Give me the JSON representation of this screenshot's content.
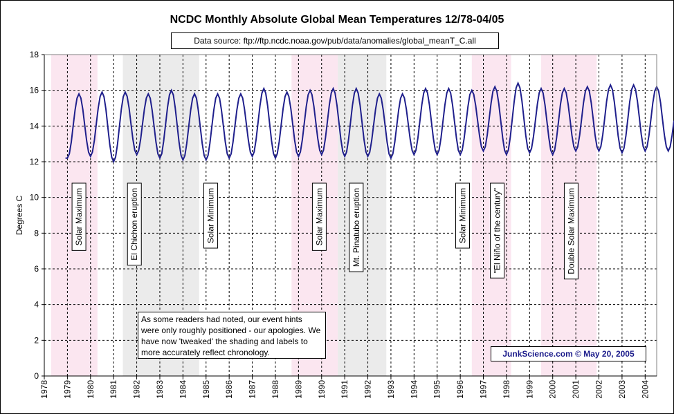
{
  "chart_data": {
    "type": "line",
    "title": "NCDC Monthly Absolute Global Mean Temperatures 12/78-04/05",
    "subtitle": "Data source: ftp://ftp.ncdc.noaa.gov/pub/data/anomalies/global_meanT_C.all",
    "ylabel": "Degrees C",
    "xlabel": "",
    "xlim": [
      1978.0,
      2004.5
    ],
    "ylim": [
      0,
      18
    ],
    "yticks": [
      0,
      2,
      4,
      6,
      8,
      10,
      12,
      14,
      16,
      18
    ],
    "xticks": [
      "1978",
      "1979",
      "1980",
      "1981",
      "1982",
      "1983",
      "1984",
      "1985",
      "1986",
      "1987",
      "1988",
      "1989",
      "1990",
      "1991",
      "1992",
      "1993",
      "1994",
      "1995",
      "1996",
      "1997",
      "1998",
      "1999",
      "2000",
      "2001",
      "2002",
      "2003",
      "2004"
    ],
    "grid": true,
    "series_color": "#1f1f8c",
    "start_year": 1978,
    "start_month": 12,
    "seasonal": {
      "minimum_month": 1,
      "peak_month": 7,
      "yearly_min": [
        12.1,
        12.2,
        12.3,
        12.0,
        12.4,
        12.2,
        12.1,
        12.1,
        12.2,
        12.3,
        12.2,
        12.3,
        12.4,
        12.3,
        12.3,
        12.2,
        12.4,
        12.4,
        12.4,
        12.6,
        12.4,
        12.5,
        12.4,
        12.6,
        12.6,
        12.5,
        12.6
      ],
      "yearly_peak": [
        15.8,
        15.9,
        15.9,
        15.8,
        16.0,
        15.8,
        15.8,
        15.8,
        16.1,
        15.9,
        16.0,
        16.1,
        16.1,
        15.8,
        15.8,
        16.1,
        16.1,
        16.0,
        16.2,
        16.4,
        16.1,
        16.1,
        16.2,
        16.3,
        16.3,
        16.2
      ],
      "last_value": 14.3
    },
    "shaded_periods": [
      {
        "start": 1978.3,
        "end": 1980.3,
        "color": "#fbe6f0"
      },
      {
        "start": 1981.4,
        "end": 1984.7,
        "color": "#ebebeb"
      },
      {
        "start": 1988.7,
        "end": 1990.7,
        "color": "#fbe6f0"
      },
      {
        "start": 1990.7,
        "end": 1992.8,
        "color": "#ebebeb"
      },
      {
        "start": 1996.5,
        "end": 1998.2,
        "color": "#fbe6f0"
      },
      {
        "start": 1999.5,
        "end": 2001.9,
        "color": "#fbe6f0"
      }
    ],
    "annotations": [
      {
        "label": "Solar Maximum",
        "x": 1979.5
      },
      {
        "label": "El Chichon eruption",
        "x": 1981.9
      },
      {
        "label": "Solar Minimum",
        "x": 1985.2
      },
      {
        "label": "Solar Maximum",
        "x": 1989.9
      },
      {
        "label": "Mt. Pinatubo eruption",
        "x": 1991.5
      },
      {
        "label": "Solar Minimum",
        "x": 1996.1
      },
      {
        "label": "\"El Niño of the century\"",
        "x": 1997.6
      },
      {
        "label": "Double Solar Maximum",
        "x": 2000.8
      }
    ],
    "note": "As some readers had noted, our event hints were only roughly positioned - our apologies. We have now 'tweaked' the shading and labels to more accurately reflect chronology.",
    "credit": "JunkScience.com ©  May 20, 2005"
  }
}
